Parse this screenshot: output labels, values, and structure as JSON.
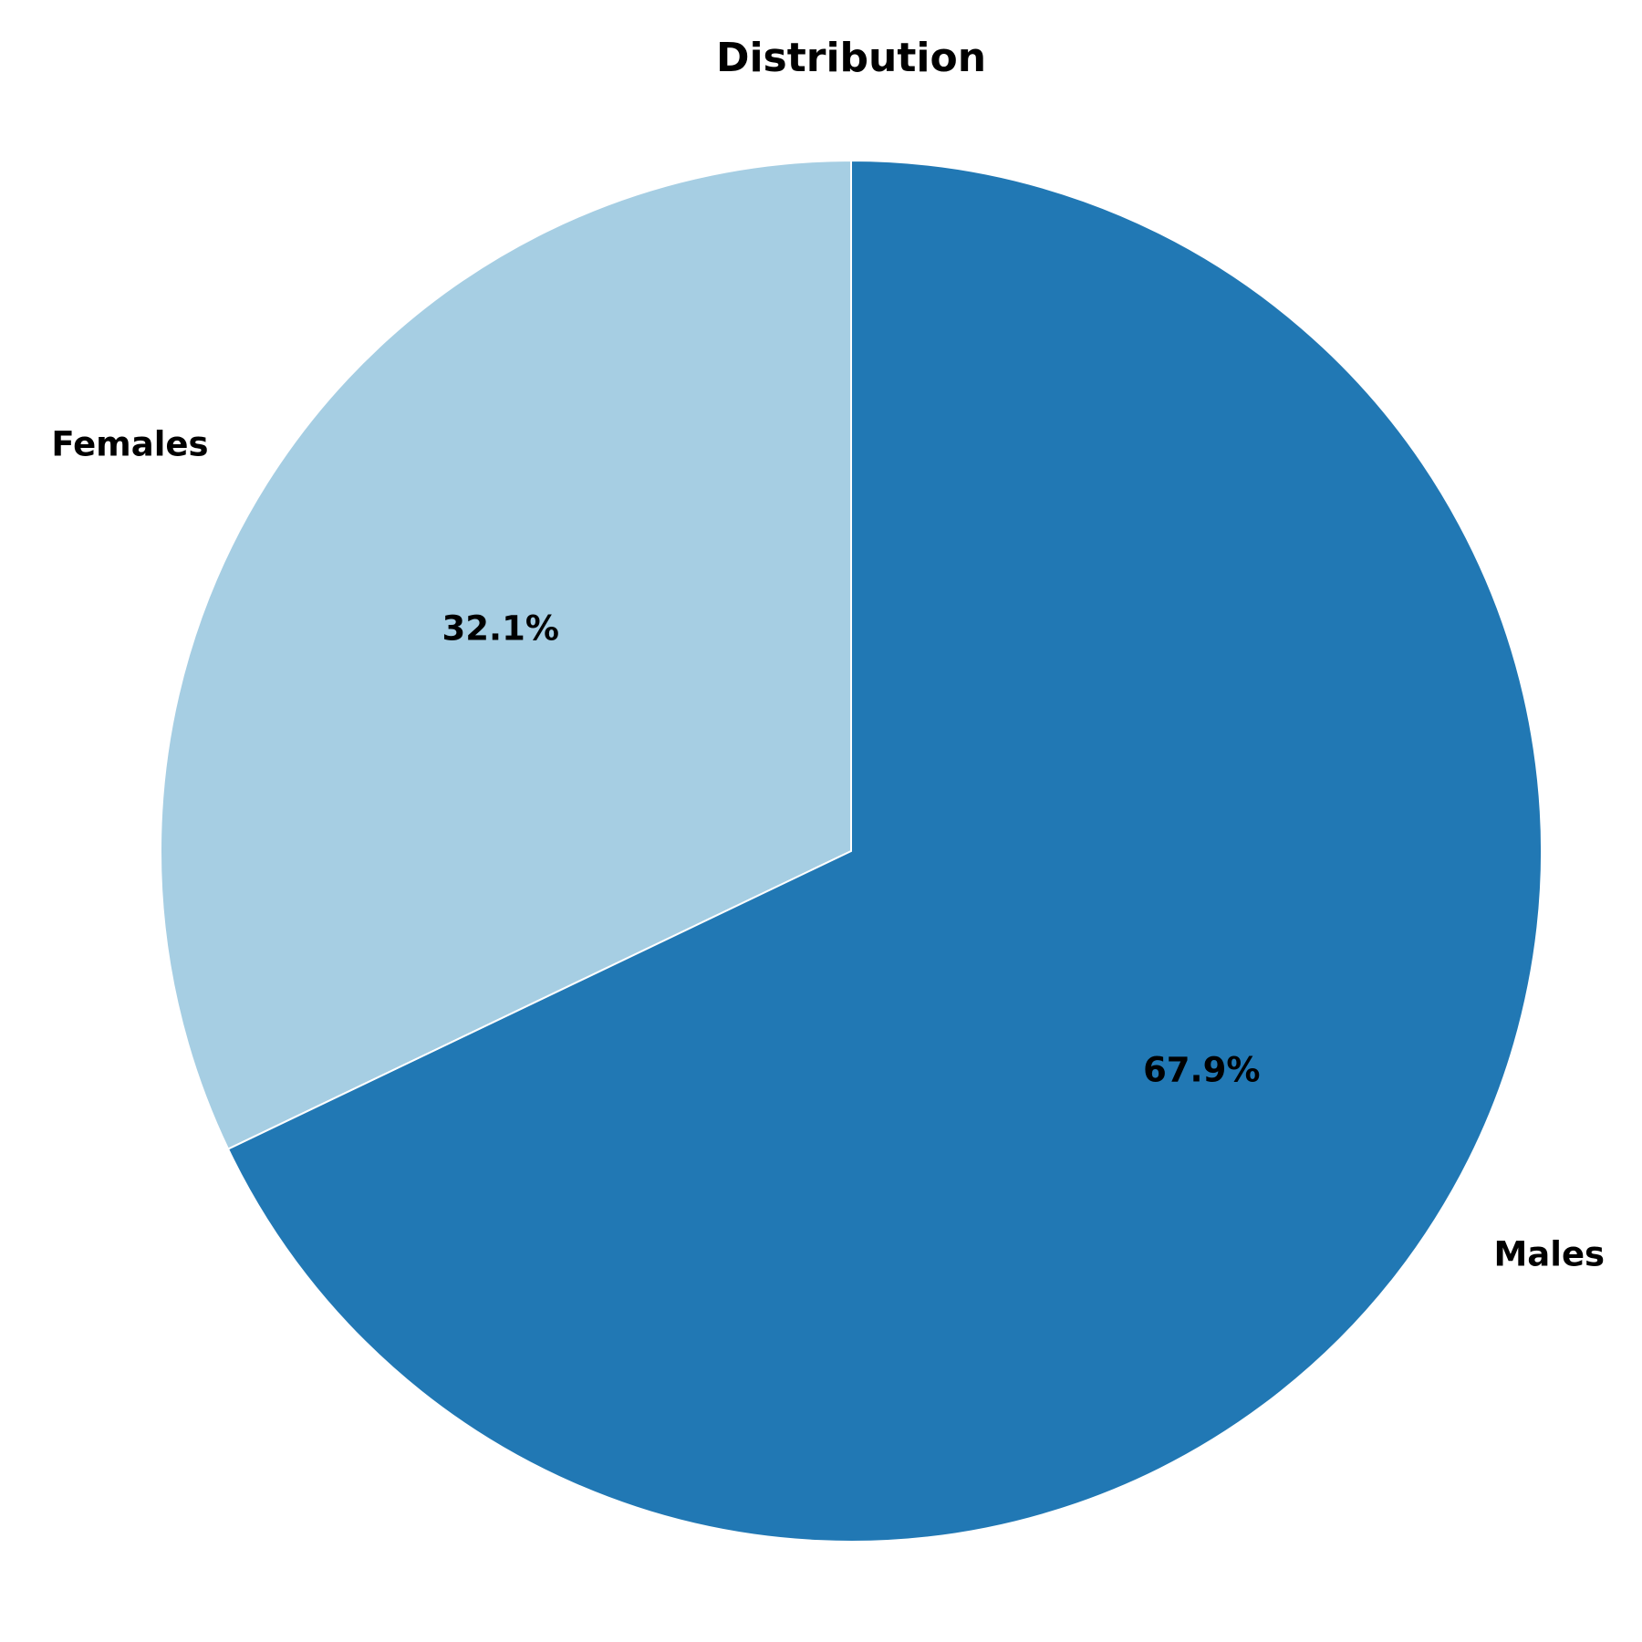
{
  "chart_data": {
    "type": "pie",
    "title": "Distribution",
    "slices": [
      {
        "label": "Females",
        "value": 32.1,
        "value_label": "32.1%",
        "color": "#a6cee3"
      },
      {
        "label": "Males",
        "value": 67.9,
        "value_label": "67.9%",
        "color": "#2178b4"
      }
    ],
    "start_angle_deg": 90,
    "direction": "counterclockwise"
  }
}
